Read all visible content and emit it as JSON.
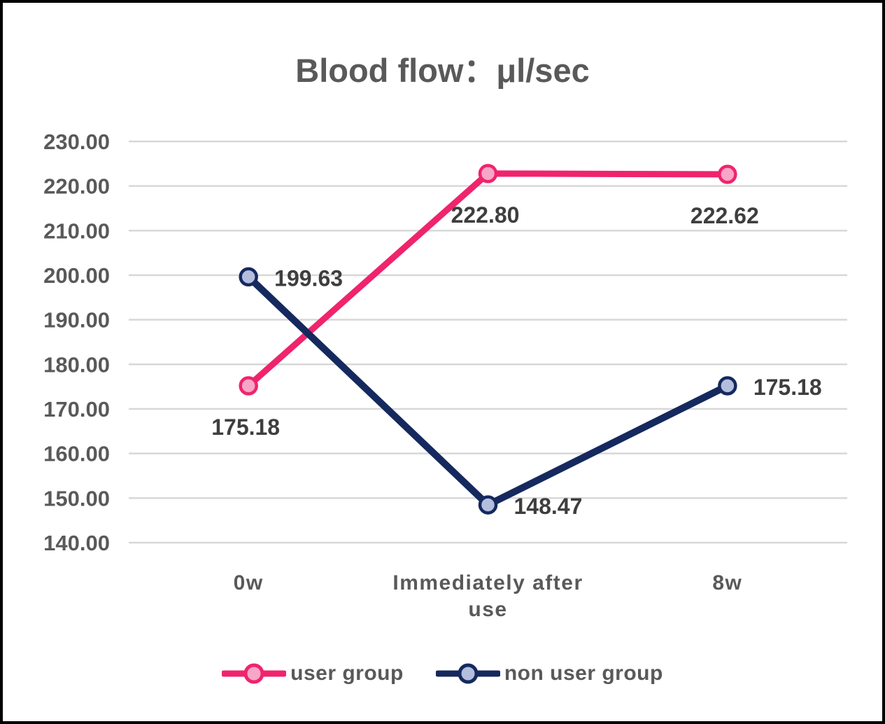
{
  "chart_data": {
    "type": "line",
    "title": "Blood flow：μl/sec",
    "categories": [
      "0w",
      "Immediately after use",
      "8w"
    ],
    "series": [
      {
        "name": "user group",
        "values": [
          175.18,
          222.8,
          222.62
        ],
        "color": "#EF246C",
        "marker_fill": "#F7A6C8",
        "data_label_position": "below"
      },
      {
        "name": "non user group",
        "values": [
          199.63,
          148.47,
          175.18
        ],
        "color": "#15295E",
        "marker_fill": "#B3BEDF",
        "data_label_position": "right"
      }
    ],
    "y_axis": {
      "min": 140,
      "max": 230,
      "step": 10,
      "decimals": 2
    },
    "ylim": [
      140,
      230
    ],
    "grid": true,
    "data_labels_shown": true,
    "legend_position": "bottom",
    "colors": {
      "gridline": "#D8D8D8",
      "axis_text": "#595959",
      "data_label_text": "#3E3E3E",
      "title_text": "#595959",
      "legend_text": "#595959",
      "background": "#FFFFFF",
      "border": "#000000"
    }
  }
}
